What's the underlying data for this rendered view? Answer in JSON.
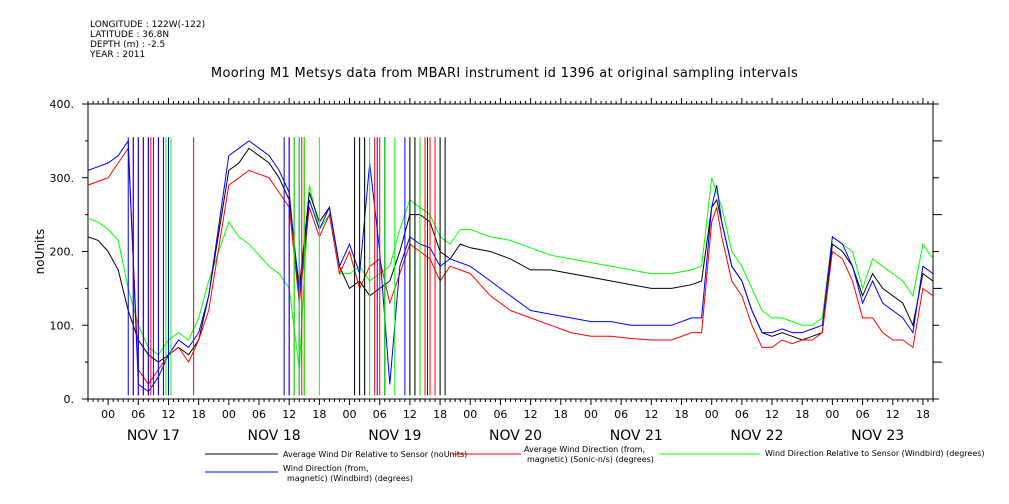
{
  "header": {
    "longitude": "LONGITUDE : 122W(-122)",
    "latitude": "LATITUDE : 36.8N",
    "depth": "DEPTH (m) : -2.5",
    "year": "YEAR : 2011"
  },
  "chart_data": {
    "type": "line",
    "title": "Mooring M1 Metsys data from MBARI instrument id 1396 at original sampling intervals",
    "ylabel": "noUnits",
    "xlabel": "",
    "ylim": [
      0,
      400
    ],
    "y_ticks": [
      "0.",
      "100.",
      "200.",
      "300.",
      "400."
    ],
    "xlim_hours": [
      -4,
      164
    ],
    "hour_ticks": [
      "00",
      "06",
      "12",
      "18"
    ],
    "day_labels": [
      "NOV 17",
      "NOV 18",
      "NOV 19",
      "NOV 20",
      "NOV 21",
      "NOV 22",
      "NOV 23"
    ],
    "grid": false,
    "legend_placement": "bottom",
    "series": [
      {
        "name": "Average Wind Dir Relative to Sensor (noUnits)",
        "color": "#000000",
        "x": [
          -4,
          -2,
          0,
          2,
          4,
          6,
          8,
          10,
          12,
          14,
          16,
          18,
          20,
          24,
          26,
          28,
          32,
          34,
          36,
          38,
          40,
          42,
          44,
          46,
          48,
          50,
          52,
          54,
          56,
          58,
          60,
          62,
          64,
          66,
          68,
          70,
          72,
          76,
          80,
          84,
          88,
          92,
          96,
          100,
          104,
          108,
          112,
          116,
          118,
          120,
          121,
          122,
          124,
          126,
          128,
          130,
          132,
          134,
          136,
          138,
          140,
          142,
          144,
          146,
          148,
          150,
          152,
          154,
          156,
          158,
          160,
          162,
          164
        ],
        "y": [
          220,
          215,
          200,
          175,
          120,
          80,
          60,
          50,
          60,
          70,
          60,
          80,
          140,
          310,
          320,
          340,
          320,
          300,
          270,
          150,
          280,
          240,
          260,
          180,
          150,
          160,
          140,
          150,
          160,
          200,
          250,
          250,
          240,
          200,
          190,
          210,
          205,
          200,
          190,
          175,
          175,
          170,
          165,
          160,
          155,
          150,
          150,
          155,
          160,
          260,
          270,
          240,
          180,
          160,
          120,
          90,
          85,
          90,
          85,
          80,
          85,
          90,
          210,
          200,
          180,
          140,
          170,
          150,
          140,
          130,
          100,
          170,
          160
        ]
      },
      {
        "name": "Average Wind Direction (from, magnetic) (Sonic-n/s) (degrees)",
        "color": "#ff0000",
        "x": [
          -4,
          -2,
          0,
          2,
          4,
          6,
          8,
          10,
          12,
          14,
          16,
          18,
          20,
          24,
          26,
          28,
          32,
          34,
          36,
          38,
          40,
          42,
          44,
          46,
          48,
          50,
          52,
          54,
          56,
          58,
          60,
          62,
          64,
          66,
          68,
          70,
          72,
          76,
          80,
          84,
          88,
          92,
          96,
          100,
          104,
          108,
          112,
          116,
          118,
          120,
          121,
          122,
          124,
          126,
          128,
          130,
          132,
          134,
          136,
          138,
          140,
          142,
          144,
          146,
          148,
          150,
          152,
          154,
          156,
          158,
          160,
          162,
          164
        ],
        "y": [
          290,
          295,
          300,
          320,
          340,
          40,
          20,
          40,
          60,
          70,
          50,
          80,
          120,
          290,
          300,
          310,
          300,
          280,
          260,
          130,
          260,
          220,
          250,
          170,
          200,
          150,
          180,
          190,
          130,
          170,
          210,
          200,
          190,
          160,
          180,
          175,
          170,
          140,
          120,
          110,
          100,
          90,
          85,
          85,
          82,
          80,
          80,
          90,
          90,
          240,
          260,
          220,
          160,
          140,
          100,
          70,
          70,
          80,
          75,
          80,
          80,
          90,
          200,
          190,
          160,
          110,
          110,
          90,
          80,
          80,
          70,
          150,
          140
        ]
      },
      {
        "name": "Wind Direction Relative to Sensor (Windbird) (degrees)",
        "color": "#00ff00",
        "x": [
          -4,
          -2,
          0,
          2,
          4,
          6,
          8,
          10,
          12,
          14,
          16,
          18,
          20,
          24,
          26,
          28,
          32,
          34,
          36,
          38,
          40,
          42,
          44,
          46,
          48,
          50,
          52,
          54,
          56,
          58,
          60,
          62,
          64,
          66,
          68,
          70,
          72,
          76,
          80,
          84,
          88,
          92,
          96,
          100,
          104,
          108,
          112,
          116,
          118,
          120,
          121,
          122,
          124,
          126,
          128,
          130,
          132,
          134,
          136,
          138,
          140,
          142,
          144,
          146,
          148,
          150,
          152,
          154,
          156,
          158,
          160,
          162,
          164
        ],
        "y": [
          245,
          240,
          230,
          215,
          150,
          100,
          70,
          60,
          80,
          90,
          80,
          110,
          160,
          240,
          220,
          210,
          180,
          170,
          150,
          40,
          290,
          230,
          250,
          170,
          170,
          180,
          160,
          170,
          180,
          230,
          270,
          260,
          250,
          220,
          210,
          230,
          230,
          220,
          215,
          205,
          195,
          190,
          185,
          180,
          175,
          170,
          170,
          175,
          180,
          300,
          280,
          260,
          200,
          180,
          150,
          120,
          110,
          110,
          105,
          100,
          100,
          110,
          220,
          210,
          200,
          150,
          190,
          180,
          170,
          160,
          140,
          210,
          190
        ]
      },
      {
        "name": "Wind Direction (from, magnetic) (Windbird) (degrees)",
        "color": "#0000ff",
        "x": [
          -4,
          -2,
          0,
          2,
          4,
          6,
          8,
          10,
          12,
          14,
          16,
          18,
          20,
          24,
          26,
          28,
          32,
          34,
          36,
          38,
          40,
          42,
          44,
          46,
          48,
          50,
          52,
          54,
          56,
          58,
          60,
          62,
          64,
          66,
          68,
          70,
          72,
          76,
          80,
          84,
          88,
          92,
          96,
          100,
          104,
          108,
          112,
          116,
          118,
          120,
          121,
          122,
          124,
          126,
          128,
          130,
          132,
          134,
          136,
          138,
          140,
          142,
          144,
          146,
          148,
          150,
          152,
          154,
          156,
          158,
          160,
          162,
          164
        ],
        "y": [
          310,
          315,
          320,
          330,
          350,
          20,
          10,
          30,
          60,
          80,
          70,
          90,
          140,
          330,
          340,
          350,
          330,
          310,
          280,
          140,
          270,
          230,
          260,
          180,
          210,
          170,
          320,
          200,
          20,
          180,
          220,
          210,
          205,
          180,
          190,
          185,
          180,
          160,
          140,
          120,
          115,
          110,
          105,
          105,
          100,
          100,
          100,
          110,
          110,
          260,
          290,
          240,
          180,
          160,
          120,
          90,
          90,
          95,
          90,
          90,
          95,
          100,
          220,
          210,
          180,
          130,
          160,
          130,
          120,
          110,
          90,
          180,
          170
        ]
      }
    ],
    "spikes": [
      {
        "series": 1,
        "x": [
          5,
          6,
          7,
          8,
          8.5,
          10,
          11,
          12,
          17,
          36,
          37,
          38.5,
          39,
          53,
          54,
          55,
          62,
          63,
          64,
          65
        ]
      },
      {
        "series": 3,
        "x": [
          4,
          5,
          6,
          7,
          8,
          9,
          10,
          11,
          12,
          35,
          36,
          38,
          53.5,
          55,
          59,
          63.5
        ]
      },
      {
        "series": 2,
        "x": [
          11.5,
          12.5,
          37,
          38,
          39,
          42,
          51,
          52,
          55,
          57,
          60,
          61,
          62,
          66
        ]
      },
      {
        "series": 0,
        "x": [
          49,
          50,
          51,
          60,
          61,
          66,
          67
        ]
      }
    ]
  }
}
